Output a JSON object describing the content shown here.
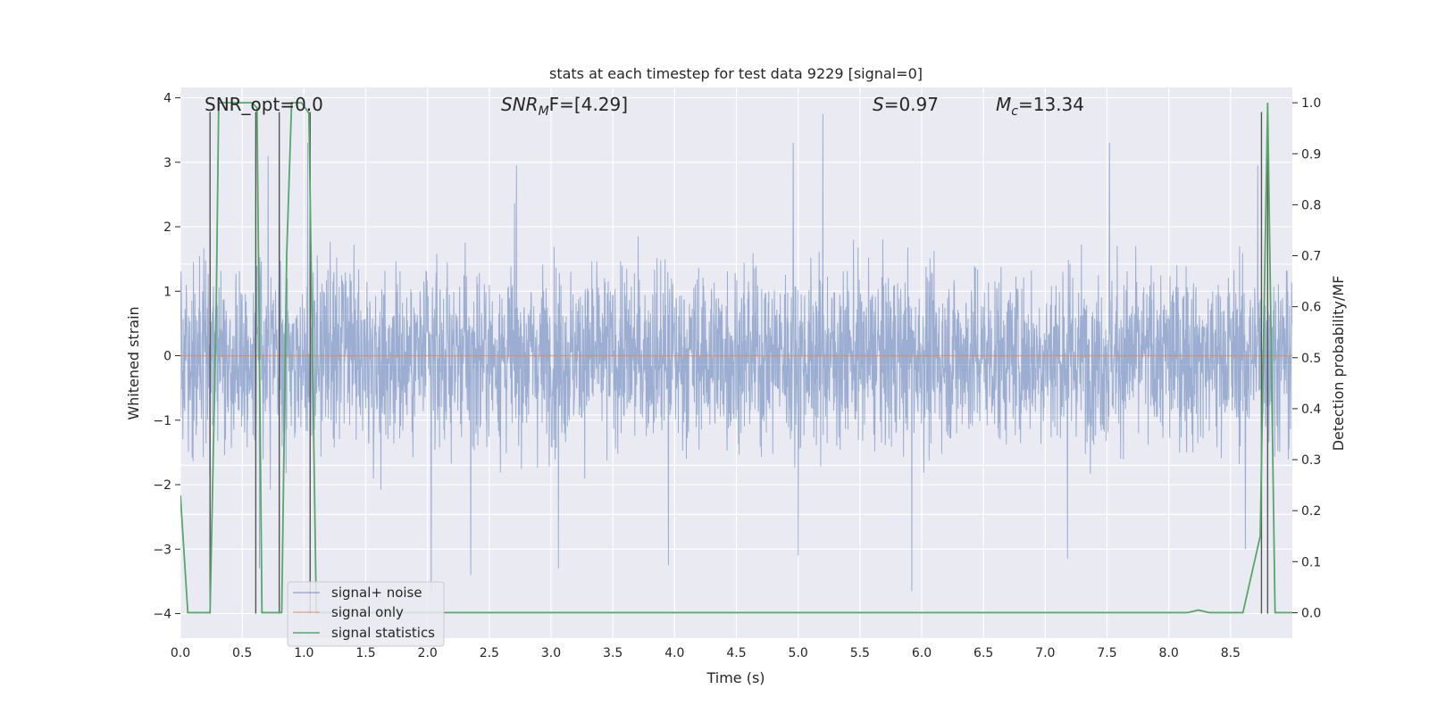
{
  "chart_data": {
    "type": "line",
    "title": "stats at each timestep for test data 9229 [signal=0]",
    "xlabel": "Time (s)",
    "ylabel": "Whitened strain",
    "y2label": "Detection probability/MF",
    "xlim": [
      0.0,
      9.0
    ],
    "ylim": [
      -4.38,
      4.16
    ],
    "y2lim": [
      -0.05,
      1.03
    ],
    "xticks": [
      0.0,
      0.5,
      1.0,
      1.5,
      2.0,
      2.5,
      3.0,
      3.5,
      4.0,
      4.5,
      5.0,
      5.5,
      6.0,
      6.5,
      7.0,
      7.5,
      8.0,
      8.5
    ],
    "xtick_labels": [
      "0.0",
      "0.5",
      "1.0",
      "1.5",
      "2.0",
      "2.5",
      "3.0",
      "3.5",
      "4.0",
      "4.5",
      "5.0",
      "5.5",
      "6.0",
      "6.5",
      "7.0",
      "7.5",
      "8.0",
      "8.5"
    ],
    "yticks": [
      -4,
      -3,
      -2,
      -1,
      0,
      1,
      2,
      3,
      4
    ],
    "ytick_labels": [
      "−4",
      "−3",
      "−2",
      "−1",
      "0",
      "1",
      "2",
      "3",
      "4"
    ],
    "y2ticks": [
      0.0,
      0.1,
      0.2,
      0.3,
      0.4,
      0.5,
      0.6,
      0.7,
      0.8,
      0.9,
      1.0
    ],
    "y2tick_labels": [
      "0.0",
      "0.1",
      "0.2",
      "0.3",
      "0.4",
      "0.5",
      "0.6",
      "0.7",
      "0.8",
      "0.9",
      "1.0"
    ],
    "grid": true,
    "legend_position": "lower-left",
    "annotations": {
      "snr_opt": "SNR_opt=0.0",
      "snr_mf_prefix": "SNR",
      "snr_mf_sub": "M",
      "snr_mf_rest": "F=[4.29]",
      "s_prefix": "S",
      "s_rest": "=0.97",
      "mc_prefix": "M",
      "mc_sub": "c",
      "mc_rest": "=13.34"
    },
    "series": [
      {
        "name": "signal+ noise",
        "color": "#4c72b0",
        "axis": "left",
        "note_visual": "dense whitened noise, roughly within ±2 with spikes to about ±3.8",
        "peaks": [
          [
            0.24,
            1.8
          ],
          [
            0.71,
            3.1
          ],
          [
            1.03,
            3.3
          ],
          [
            2.72,
            2.95
          ],
          [
            4.96,
            3.3
          ],
          [
            5.2,
            3.75
          ],
          [
            5.92,
            -3.6
          ],
          [
            7.52,
            3.3
          ],
          [
            8.72,
            2.95
          ]
        ],
        "troughs": [
          [
            0.64,
            -3.3
          ],
          [
            0.8,
            -3.1
          ],
          [
            2.03,
            -3.7
          ],
          [
            2.35,
            -3.4
          ],
          [
            3.06,
            -3.3
          ],
          [
            3.95,
            -3.25
          ],
          [
            5.0,
            -3.1
          ],
          [
            5.92,
            -3.65
          ],
          [
            7.18,
            -3.15
          ],
          [
            8.62,
            -3.0
          ]
        ]
      },
      {
        "name": "signal only",
        "color": "#dd8452",
        "axis": "left",
        "x": [
          0.0,
          9.0
        ],
        "y": [
          0.0,
          0.0
        ]
      },
      {
        "name": "signal statistics",
        "color": "#55a868",
        "axis": "right",
        "x": [
          0.0,
          0.06,
          0.24,
          0.29,
          0.31,
          0.58,
          0.62,
          0.66,
          0.72,
          0.82,
          0.86,
          0.9,
          0.98,
          1.04,
          1.1,
          1.15,
          2.0,
          8.15,
          8.24,
          8.33,
          8.6,
          8.74,
          8.8,
          8.86,
          8.92,
          9.0
        ],
        "y": [
          0.23,
          0.0,
          0.0,
          0.6,
          1.0,
          1.0,
          0.99,
          0.0,
          0.0,
          0.0,
          0.7,
          1.0,
          1.0,
          0.98,
          0.0,
          0.0,
          0.0,
          0.0,
          0.005,
          0.0,
          0.0,
          0.15,
          1.0,
          0.0,
          0.0,
          0.0
        ]
      }
    ],
    "vertical_markers": [
      {
        "x": 0.24,
        "y_from": -4.0,
        "y_to": 3.78,
        "color": "#555555"
      },
      {
        "x": 0.61,
        "y_from": -4.0,
        "y_to": 3.78,
        "color": "#555555"
      },
      {
        "x": 0.8,
        "y_from": -4.0,
        "y_to": 3.78,
        "color": "#555555"
      },
      {
        "x": 1.05,
        "y_from": -4.0,
        "y_to": 3.78,
        "color": "#555555"
      },
      {
        "x": 8.75,
        "y_from": -4.0,
        "y_to": 3.78,
        "color": "#555555"
      },
      {
        "x": 8.8,
        "y_from": -4.0,
        "y_to": 3.78,
        "color": "#555555"
      }
    ],
    "horizontal_reference_lines": [
      {
        "axis": "left",
        "y": 1.42,
        "color": "#ffffff"
      },
      {
        "axis": "left",
        "y": 0.64,
        "color": "#ffffff"
      },
      {
        "axis": "left",
        "y": -0.14,
        "color": "#ffffff"
      },
      {
        "axis": "left",
        "y": -0.92,
        "color": "#ffffff"
      },
      {
        "axis": "left",
        "y": -1.7,
        "color": "#ffffff"
      },
      {
        "axis": "left",
        "y": -2.46,
        "color": "#ffffff"
      }
    ]
  },
  "colors": {
    "axes_background": "#eaeaf2",
    "grid": "#ffffff",
    "text": "#262626",
    "legend_background": "#eaeaf2",
    "legend_border": "#cccccc"
  }
}
